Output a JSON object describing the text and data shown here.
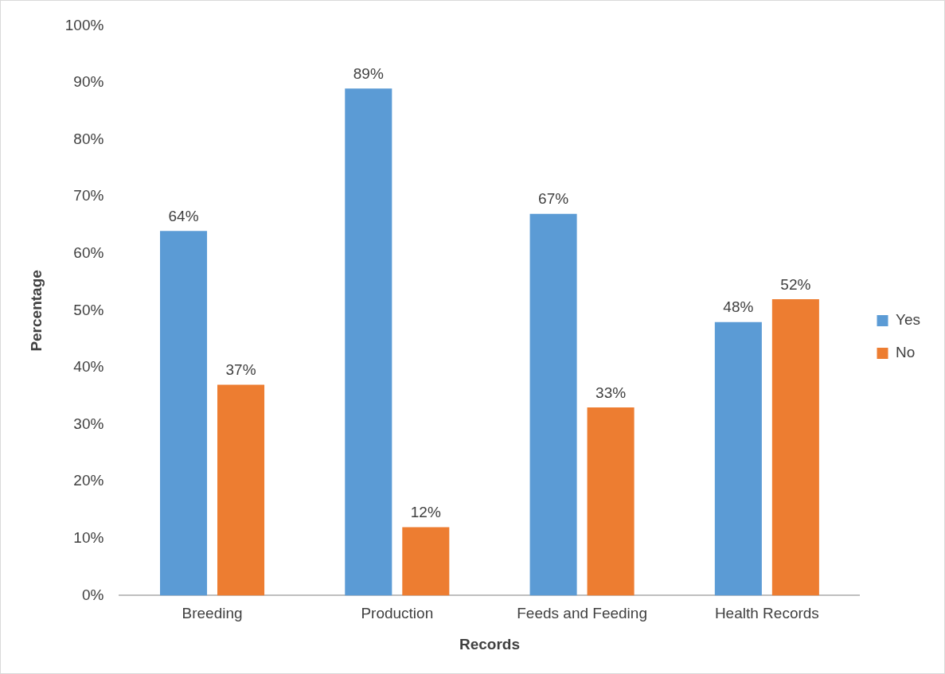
{
  "chart_data": {
    "type": "bar",
    "xlabel": "Records",
    "ylabel": "Percentage",
    "categories": [
      "Breeding",
      "Production",
      "Feeds and Feeding",
      "Health Records"
    ],
    "series": [
      {
        "name": "Yes",
        "color": "#5b9bd5",
        "values": [
          64,
          89,
          67,
          48
        ],
        "value_labels": [
          "64%",
          "89%",
          "67%",
          "48%"
        ]
      },
      {
        "name": "No",
        "color": "#ed7d31",
        "values": [
          37,
          12,
          33,
          52
        ],
        "value_labels": [
          "37%",
          "12%",
          "33%",
          "52%"
        ]
      }
    ],
    "ylim": [
      0,
      100
    ],
    "yticks": [
      {
        "value": 0,
        "label": "0%"
      },
      {
        "value": 10,
        "label": "10%"
      },
      {
        "value": 20,
        "label": "20%"
      },
      {
        "value": 30,
        "label": "30%"
      },
      {
        "value": 40,
        "label": "40%"
      },
      {
        "value": 50,
        "label": "50%"
      },
      {
        "value": 60,
        "label": "60%"
      },
      {
        "value": 70,
        "label": "70%"
      },
      {
        "value": 80,
        "label": "80%"
      },
      {
        "value": 90,
        "label": "90%"
      },
      {
        "value": 100,
        "label": "100%"
      }
    ],
    "legend": "right"
  }
}
